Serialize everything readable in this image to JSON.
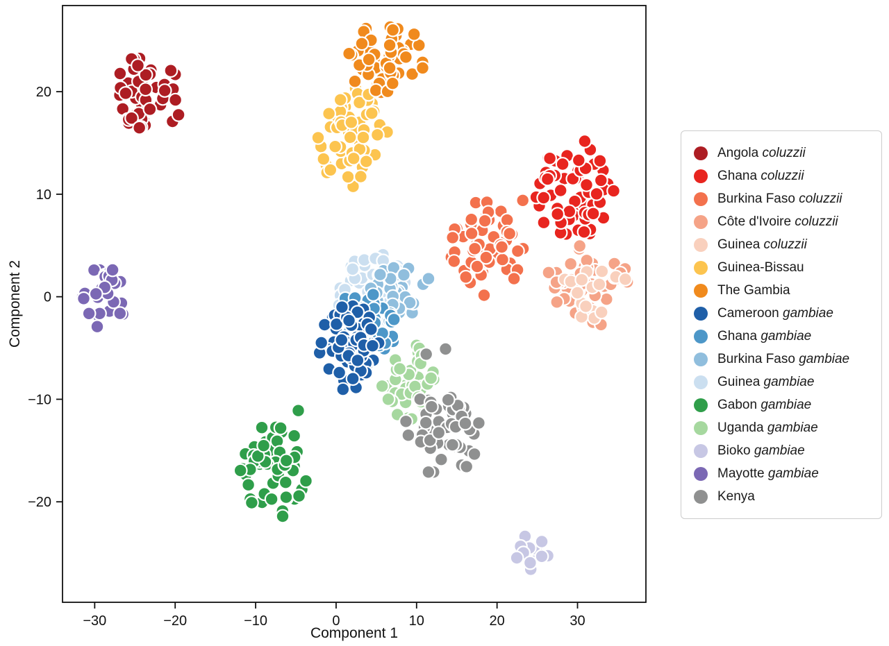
{
  "chart_data": {
    "type": "scatter",
    "title": "",
    "xlabel": "Component 1",
    "ylabel": "Component 2",
    "xlim": [
      -34,
      38.5
    ],
    "ylim": [
      -29.8,
      28.4
    ],
    "xticks": [
      -30,
      -20,
      -10,
      0,
      10,
      20,
      30
    ],
    "xtick_labels": [
      "−30",
      "−20",
      "−10",
      "0",
      "10",
      "20",
      "30"
    ],
    "yticks": [
      -20,
      -10,
      0,
      10,
      20
    ],
    "ytick_labels": [
      "−20",
      "−10",
      "0",
      "10",
      "20"
    ],
    "grid": false,
    "legend_position": "right",
    "frame_color": "#111111",
    "marker": {
      "radius_px": 9.3,
      "stroke": "#ffffff",
      "stroke_width": 2.2
    },
    "series": [
      {
        "label": "Angola",
        "species": "coluzzii",
        "color": "#ad1d23",
        "z": 3,
        "cluster": {
          "cx": -23.2,
          "cy": 19.9,
          "rx": 4.0,
          "ry": 4.0,
          "n": 52
        }
      },
      {
        "label": "Ghana",
        "species": "coluzzii",
        "color": "#e8251f",
        "z": 3,
        "cluster": {
          "cx": 29.5,
          "cy": 10.7,
          "rx": 5.0,
          "ry": 4.9,
          "n": 65
        }
      },
      {
        "label": "Burkina Faso",
        "species": "coluzzii",
        "color": "#f3714d",
        "z": 3,
        "cluster": {
          "cx": 18.6,
          "cy": 4.6,
          "rx": 4.8,
          "ry": 4.6,
          "n": 58,
          "extra": [
            [
              23.2,
              9.4
            ]
          ]
        }
      },
      {
        "label": "Côte d'Ivoire",
        "species": "coluzzii",
        "color": "#f5a387",
        "z": 3,
        "cluster": {
          "cx": 31.2,
          "cy": 1.2,
          "rx": 4.8,
          "ry": 4.1,
          "n": 48
        }
      },
      {
        "label": "Guinea",
        "species": "coluzzii",
        "color": "#f9d0bd",
        "z": 4,
        "cluster": {
          "cx": 32.3,
          "cy": 0.9,
          "rx": 3.8,
          "ry": 3.3,
          "n": 16
        }
      },
      {
        "label": "Guinea-Bissau",
        "species": "",
        "color": "#fcc44f",
        "z": 3,
        "cluster": {
          "cx": 2.0,
          "cy": 15.5,
          "rx": 4.3,
          "ry": 4.8,
          "n": 58
        }
      },
      {
        "label": "The Gambia",
        "species": "",
        "color": "#f08a1d",
        "z": 4,
        "cluster": {
          "cx": 6.3,
          "cy": 23.3,
          "rx": 5.0,
          "ry": 3.5,
          "n": 55
        }
      },
      {
        "label": "Cameroon",
        "species": "gambiae",
        "color": "#1f5fa8",
        "z": 8,
        "cluster": {
          "cx": 1.6,
          "cy": -4.6,
          "rx": 3.8,
          "ry": 4.4,
          "n": 60
        }
      },
      {
        "label": "Ghana",
        "species": "gambiae",
        "color": "#4d97c8",
        "z": 7,
        "cluster": {
          "cx": 4.0,
          "cy": -2.6,
          "rx": 3.8,
          "ry": 3.2,
          "n": 42
        }
      },
      {
        "label": "Burkina Faso",
        "species": "gambiae",
        "color": "#90bedd",
        "z": 6,
        "cluster": {
          "cx": 8.0,
          "cy": 0.0,
          "rx": 3.8,
          "ry": 3.2,
          "n": 38
        }
      },
      {
        "label": "Guinea",
        "species": "gambiae",
        "color": "#cbdff0",
        "z": 5,
        "cluster": {
          "cx": 4.5,
          "cy": 0.6,
          "rx": 4.6,
          "ry": 3.4,
          "n": 70
        }
      },
      {
        "label": "Gabon",
        "species": "gambiae",
        "color": "#2f9e4a",
        "z": 3,
        "cluster": {
          "cx": -7.8,
          "cy": -16.8,
          "rx": 4.2,
          "ry": 4.6,
          "n": 55,
          "extra": [
            [
              -4.7,
              -11.1
            ]
          ]
        }
      },
      {
        "label": "Uganda",
        "species": "gambiae",
        "color": "#a6d89f",
        "z": 4,
        "cluster": {
          "cx": 9.2,
          "cy": -8.3,
          "rx": 3.6,
          "ry": 3.8,
          "n": 48
        }
      },
      {
        "label": "Bioko",
        "species": "gambiae",
        "color": "#c7c7e4",
        "z": 3,
        "cluster": {
          "cx": 24.3,
          "cy": -25.3,
          "rx": 2.0,
          "ry": 1.9,
          "n": 13
        }
      },
      {
        "label": "Mayotte",
        "species": "gambiae",
        "color": "#7b68b4",
        "z": 3,
        "cluster": {
          "cx": -28.8,
          "cy": 0.0,
          "rx": 2.9,
          "ry": 3.0,
          "n": 30
        }
      },
      {
        "label": "Kenya",
        "species": "",
        "color": "#8f9090",
        "z": 5,
        "cluster": {
          "cx": 13.0,
          "cy": -13.5,
          "rx": 4.8,
          "ry": 4.3,
          "n": 55,
          "extra": [
            [
              13.6,
              -5.1
            ],
            [
              11.2,
              -5.6
            ]
          ]
        }
      }
    ]
  }
}
